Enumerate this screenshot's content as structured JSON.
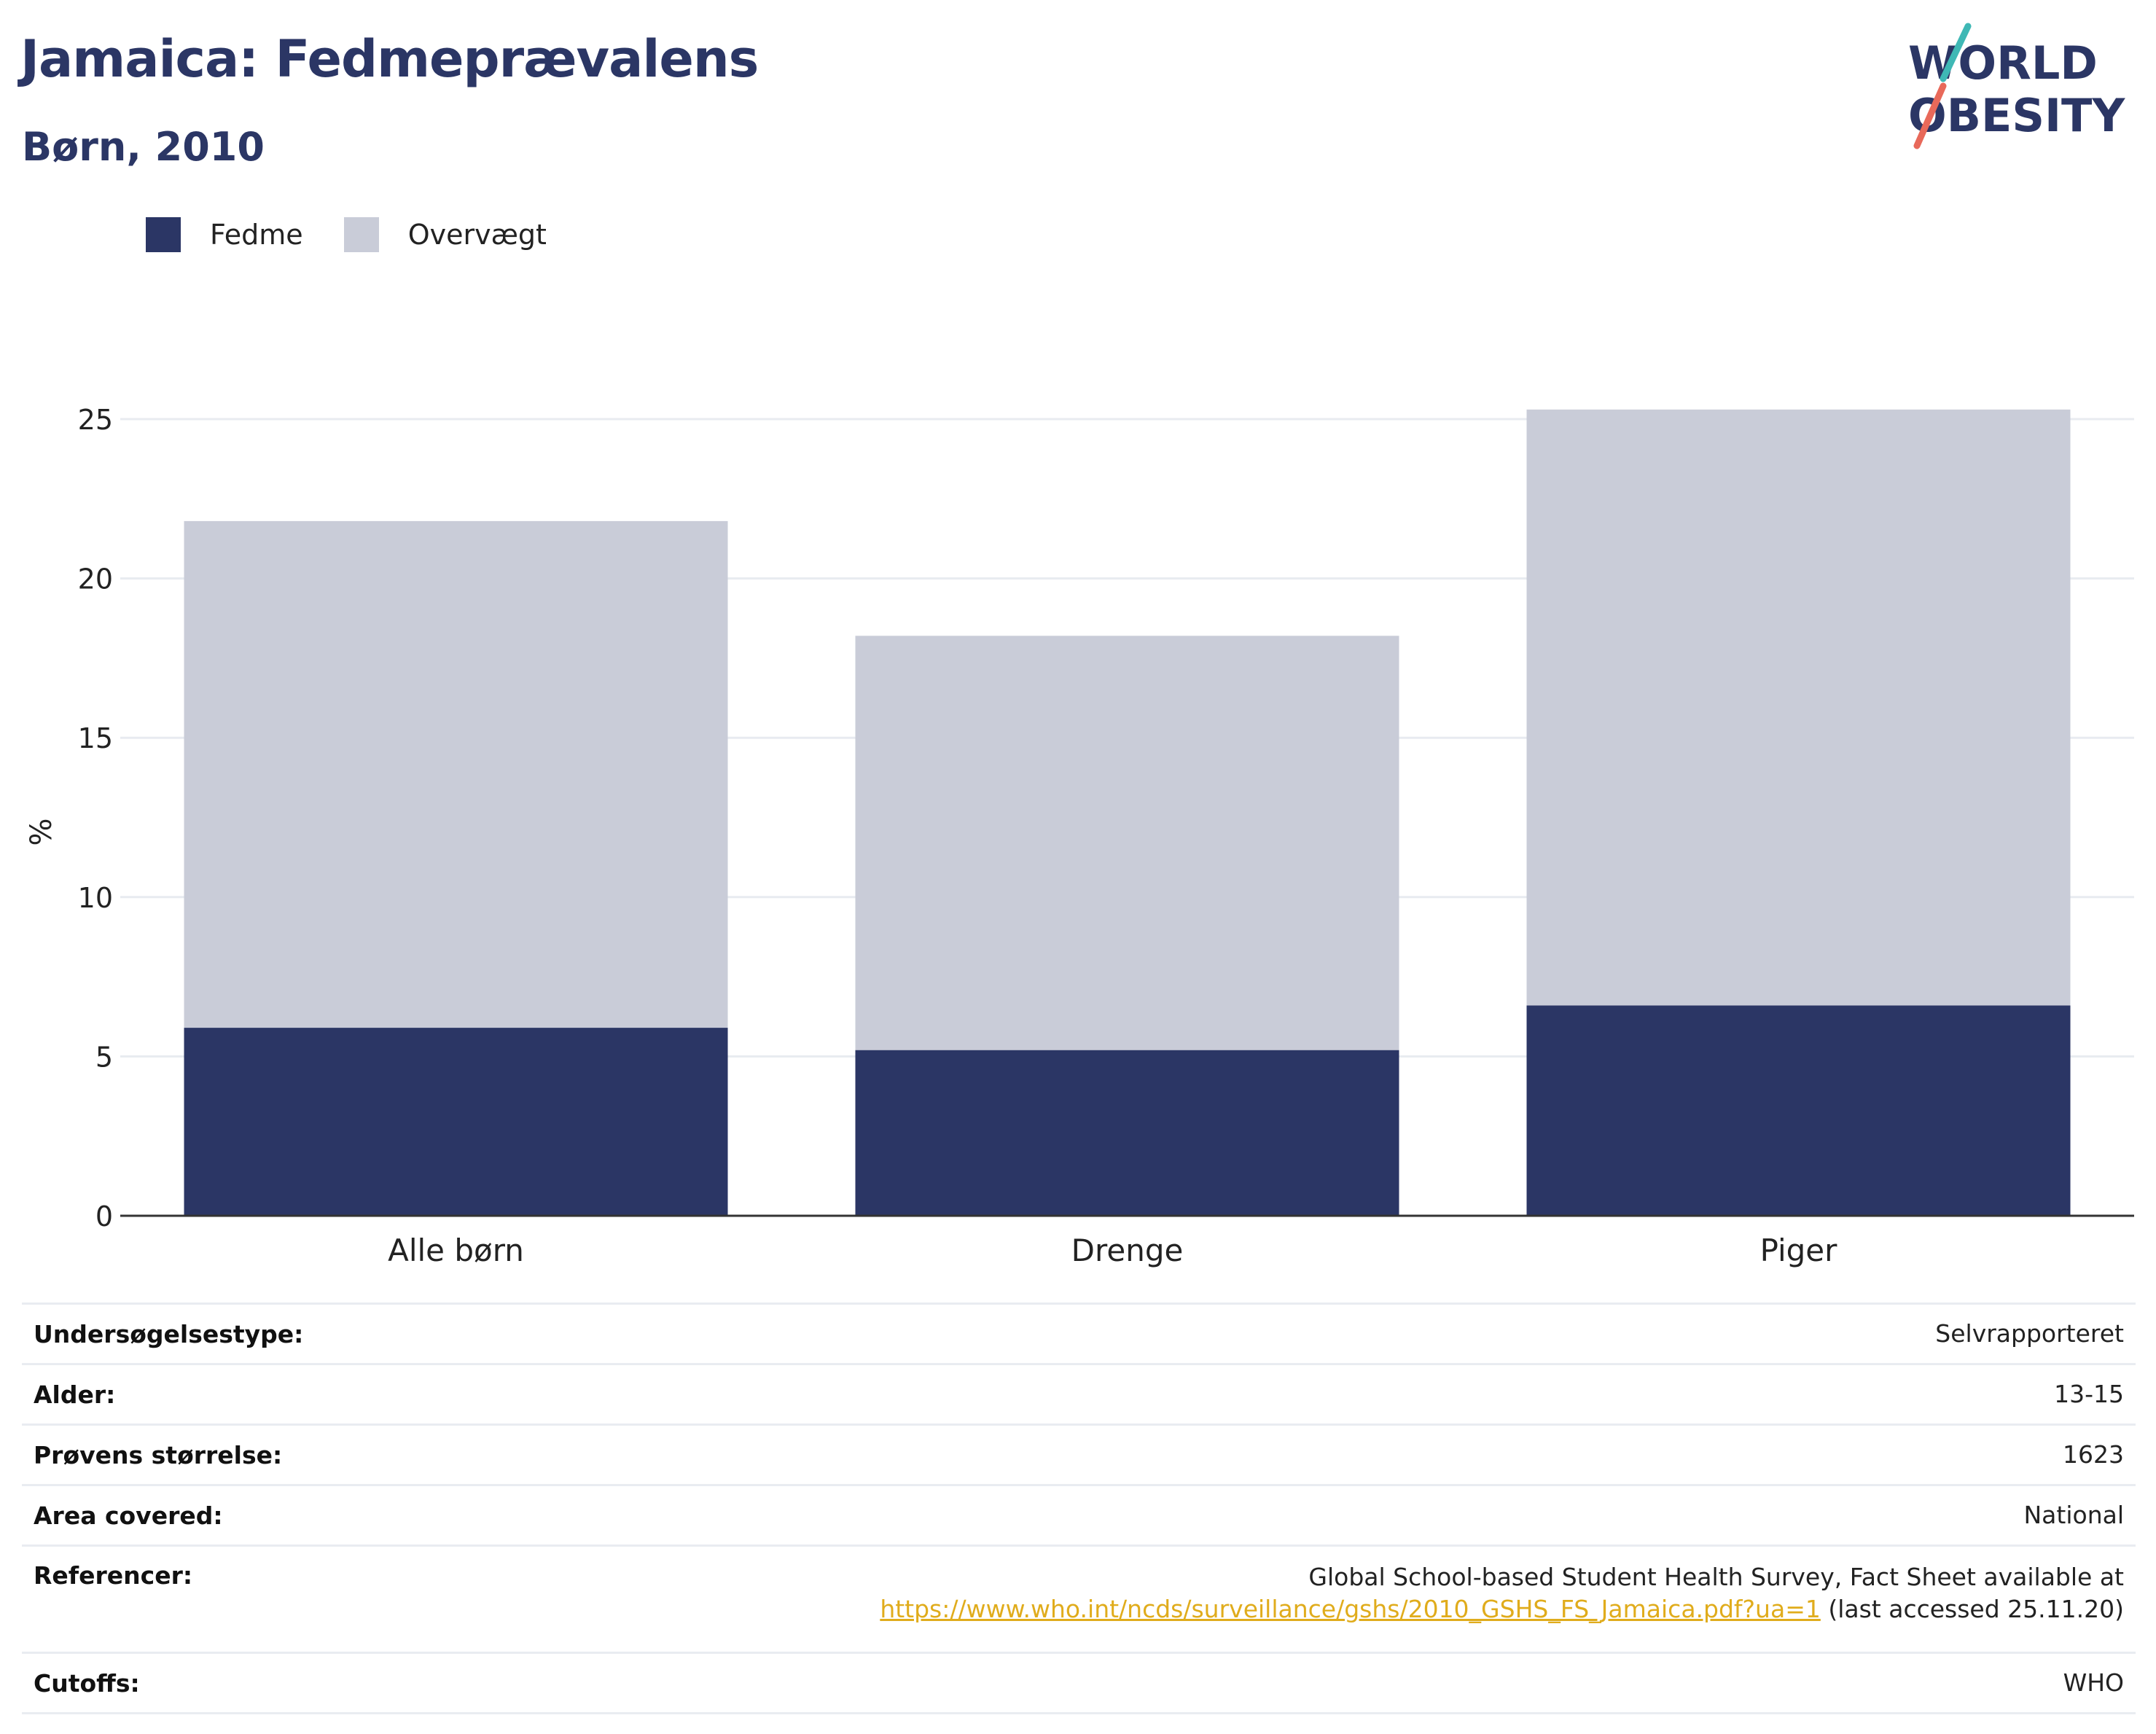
{
  "header": {
    "title": "Jamaica: Fedmeprævalens",
    "subtitle": "Børn, 2010"
  },
  "logo": {
    "line1": "WORLD",
    "line2": "OBESITY",
    "colors": {
      "text": "#2b3665",
      "accent_teal": "#3fb8b5",
      "accent_red": "#e8695a"
    }
  },
  "legend": [
    {
      "label": "Fedme",
      "color": "#2b3665"
    },
    {
      "label": "Overvægt",
      "color": "#c9ccd8"
    }
  ],
  "chart_data": {
    "type": "bar",
    "stacked": true,
    "categories": [
      "Alle børn",
      "Drenge",
      "Piger"
    ],
    "series": [
      {
        "name": "Fedme",
        "values": [
          5.9,
          5.2,
          6.6
        ],
        "color": "#2b3665"
      },
      {
        "name": "Overvægt",
        "values": [
          15.9,
          13.0,
          18.7
        ],
        "color": "#c9ccd8"
      }
    ],
    "ylabel": "%",
    "ylim": [
      0,
      27
    ],
    "yticks": [
      0,
      5,
      10,
      15,
      20,
      25
    ],
    "grid": true
  },
  "info": {
    "survey_type": {
      "label": "Undersøgelsestype:",
      "value": "Selvrapporteret"
    },
    "age": {
      "label": "Alder:",
      "value": "13-15"
    },
    "sample_size": {
      "label": "Prøvens størrelse:",
      "value": "1623"
    },
    "area": {
      "label": "Area covered:",
      "value": "National"
    },
    "references": {
      "label": "Referencer:",
      "line1": "Global School-based Student Health Survey, Fact Sheet available at",
      "link": "https://www.who.int/ncds/surveillance/gshs/2010_GSHS_FS_Jamaica.pdf?ua=1",
      "suffix": " (last accessed 25.11.20)"
    },
    "cutoffs": {
      "label": "Cutoffs:",
      "value": "WHO"
    }
  }
}
